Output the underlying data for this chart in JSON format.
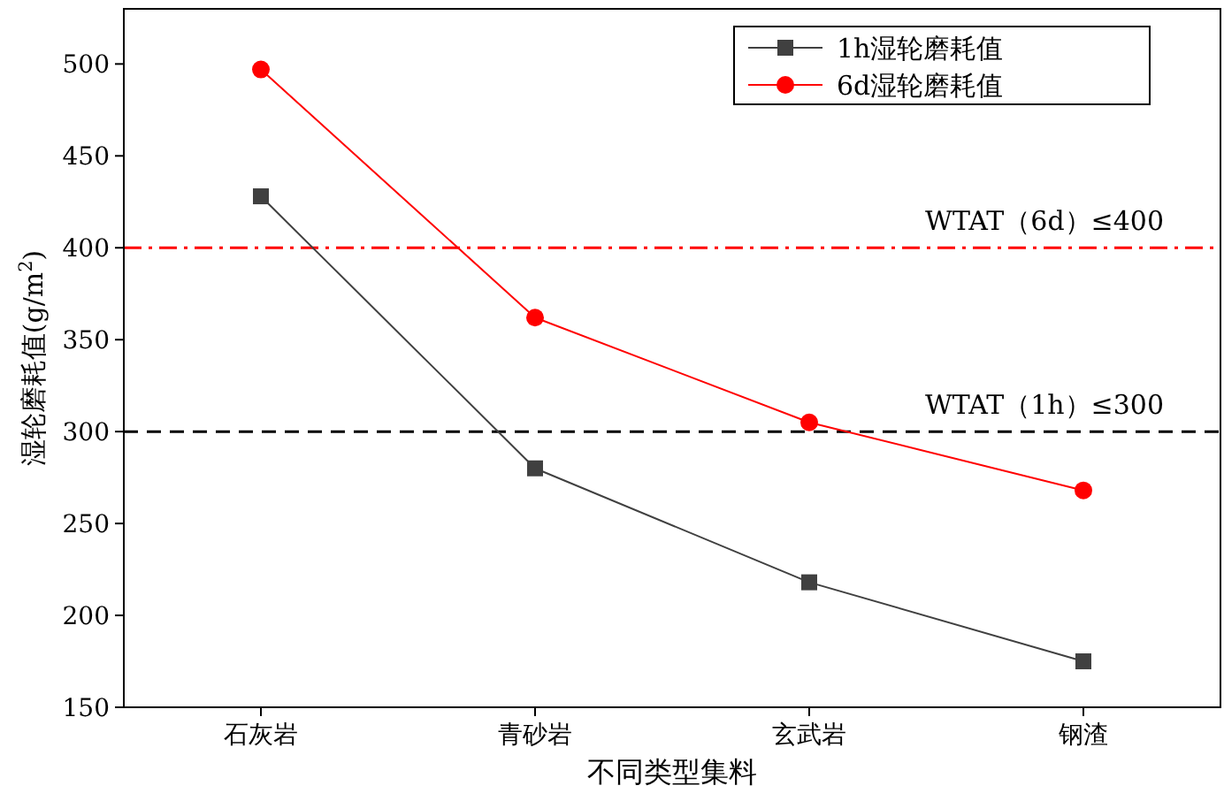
{
  "chart_data": {
    "type": "line",
    "xlabel": "不同类型集料",
    "ylabel": "湿轮磨耗值(g/m$^{2}$)",
    "categories": [
      "石灰岩",
      "青砂岩",
      "玄武岩",
      "钢渣"
    ],
    "series": [
      {
        "name": "1h湿轮磨耗值",
        "color": "#404040",
        "marker": "square",
        "values": [
          428,
          280,
          218,
          175
        ]
      },
      {
        "name": "6d湿轮磨耗值",
        "color": "#ff0000",
        "marker": "circle",
        "values": [
          497,
          362,
          305,
          268
        ]
      }
    ],
    "ylim": [
      150,
      530
    ],
    "yticks": [
      150,
      200,
      250,
      300,
      350,
      400,
      450,
      500
    ],
    "legend": "top right",
    "grid": false,
    "ref_lines": [
      {
        "axis": "y",
        "value": 400,
        "label": "WTAT（6d）≤400",
        "color": "#ff0000",
        "line_style": "dashdot"
      },
      {
        "axis": "y",
        "value": 300,
        "label": "WTAT（1h）≤300",
        "color": "#000000",
        "line_style": "dashed"
      }
    ]
  }
}
